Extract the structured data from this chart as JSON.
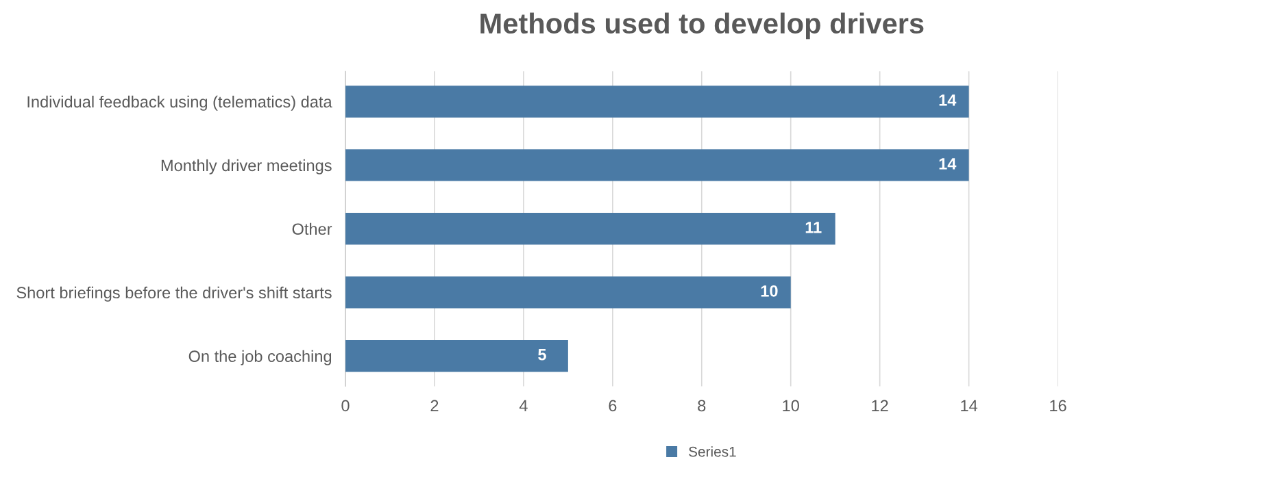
{
  "chart_data": {
    "type": "bar",
    "orientation": "horizontal",
    "title": "Methods used to develop drivers",
    "categories": [
      "Individual feedback using (telematics) data",
      "Monthly driver meetings",
      "Other",
      "Short briefings before the driver's shift starts",
      "On the job coaching"
    ],
    "series": [
      {
        "name": "Series1",
        "color": "#4a7aa5",
        "values": [
          14,
          14,
          11,
          10,
          5
        ]
      }
    ],
    "xlim": [
      0,
      16
    ],
    "xticks": [
      0,
      2,
      4,
      6,
      8,
      10,
      12,
      14,
      16
    ],
    "grid": "x",
    "legend": "bottom",
    "data_labels": true
  }
}
